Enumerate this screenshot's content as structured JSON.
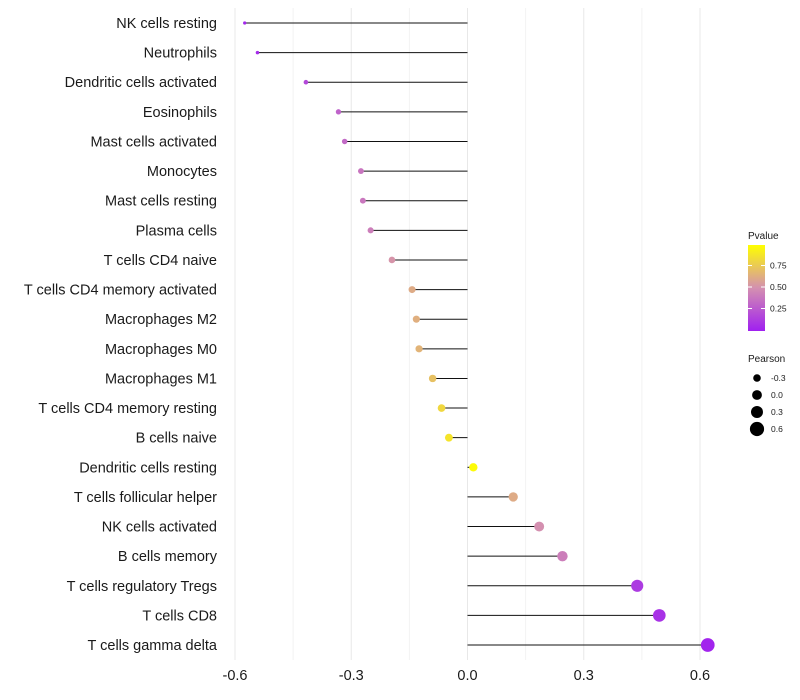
{
  "chart_data": {
    "type": "lollipop",
    "title": "",
    "xlabel": "",
    "ylabel": "",
    "xlim": [
      -0.6,
      0.6
    ],
    "x_ticks": [
      -0.6,
      -0.3,
      0.0,
      0.3,
      0.6
    ],
    "x_tick_labels": [
      "-0.6",
      "-0.3",
      "0.0",
      "0.3",
      "0.6"
    ],
    "grid": true,
    "categories": [
      "NK cells resting",
      "Neutrophils",
      "Dendritic cells activated",
      "Eosinophils",
      "Mast cells activated",
      "Monocytes",
      "Mast cells resting",
      "Plasma cells",
      "T cells CD4 naive",
      "T cells CD4 memory activated",
      "Macrophages M2",
      "Macrophages M0",
      "Macrophages M1",
      "T cells CD4 memory resting",
      "B cells naive",
      "Dendritic cells resting",
      "T cells follicular helper",
      "NK cells activated",
      "B cells memory",
      "T cells regulatory  Tregs",
      "T cells CD8",
      "T cells gamma delta"
    ],
    "pearson": [
      -0.575,
      -0.542,
      -0.417,
      -0.333,
      -0.317,
      -0.275,
      -0.27,
      -0.25,
      -0.195,
      -0.143,
      -0.132,
      -0.125,
      -0.09,
      -0.067,
      -0.048,
      0.015,
      0.118,
      0.185,
      0.245,
      0.438,
      0.495,
      0.62
    ],
    "pvalue": [
      0.03,
      0.05,
      0.18,
      0.3,
      0.33,
      0.38,
      0.39,
      0.42,
      0.52,
      0.62,
      0.64,
      0.66,
      0.72,
      0.82,
      0.88,
      0.98,
      0.62,
      0.5,
      0.42,
      0.12,
      0.08,
      0.02
    ],
    "legend_color": {
      "title": "Pvalue",
      "ticks": [
        "0.75",
        "0.50",
        "0.25"
      ],
      "color_low": "#a020f0",
      "color_mid": "#d490b0",
      "color_high": "#ffff00"
    },
    "legend_size": {
      "title": "Pearson",
      "entries": [
        "-0.3",
        "0.0",
        "0.3",
        "0.6"
      ]
    },
    "legend_position": "right"
  }
}
